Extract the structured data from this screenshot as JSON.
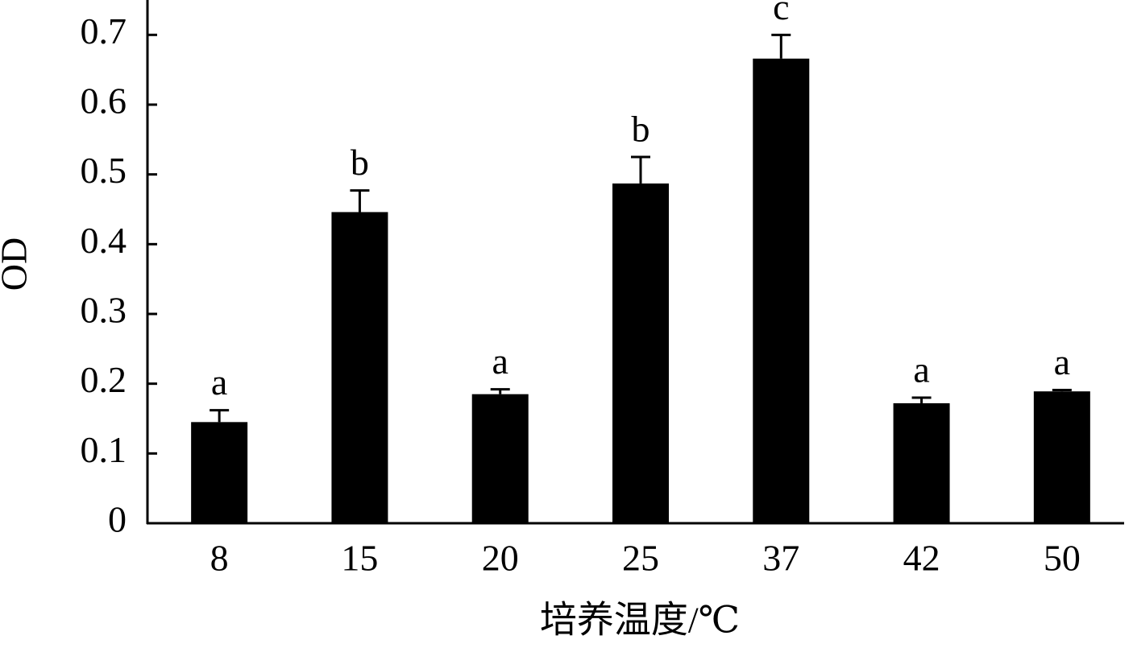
{
  "chart_data": {
    "type": "bar",
    "x_label": "培养温度/℃",
    "y_label": "OD",
    "categories": [
      "8",
      "15",
      "20",
      "25",
      "37",
      "42",
      "50"
    ],
    "values": [
      0.145,
      0.446,
      0.185,
      0.487,
      0.666,
      0.172,
      0.189
    ],
    "errors": [
      0.017,
      0.031,
      0.007,
      0.038,
      0.034,
      0.008,
      0.002
    ],
    "annotations": [
      "a",
      "b",
      "a",
      "b",
      "c",
      "a",
      "a"
    ],
    "color": "#000000",
    "ylim": [
      0,
      0.75
    ],
    "yticks": [
      0,
      0.1,
      0.2,
      0.3,
      0.4,
      0.5,
      0.6,
      0.7
    ]
  }
}
